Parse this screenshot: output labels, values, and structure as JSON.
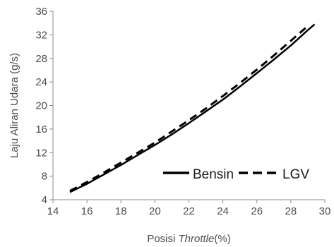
{
  "chart_data": {
    "type": "line",
    "xlabel_prefix": "Posisi ",
    "xlabel_italic": "Throttle",
    "xlabel_suffix": "(%)",
    "ylabel": "Laju Aliran Udara (g/s)",
    "xlim": [
      14,
      30
    ],
    "ylim": [
      4,
      36
    ],
    "xticks": [
      14,
      16,
      18,
      20,
      22,
      24,
      26,
      28,
      30
    ],
    "yticks": [
      4,
      8,
      12,
      16,
      20,
      24,
      28,
      32,
      36
    ],
    "grid": false,
    "legend_position": "bottom-right",
    "series": [
      {
        "name": "Bensin",
        "style": "solid",
        "color": "#000000",
        "x": [
          15,
          16,
          17,
          18,
          19,
          20,
          21,
          22,
          23,
          24,
          25,
          26,
          27,
          28,
          29,
          29.4
        ],
        "y": [
          5.3,
          6.7,
          8.3,
          9.9,
          11.6,
          13.3,
          15.1,
          17.0,
          19.0,
          21.0,
          23.2,
          25.5,
          27.8,
          30.2,
          32.8,
          33.8
        ]
      },
      {
        "name": "LGV",
        "style": "dashed",
        "color": "#000000",
        "x": [
          15,
          16,
          17,
          18,
          19,
          20,
          21,
          22,
          23,
          24,
          25,
          26,
          27,
          28,
          29
        ],
        "y": [
          5.5,
          7.0,
          8.6,
          10.3,
          12.0,
          13.7,
          15.6,
          17.5,
          19.5,
          21.6,
          23.8,
          26.1,
          28.5,
          31.0,
          33.5
        ]
      }
    ]
  }
}
